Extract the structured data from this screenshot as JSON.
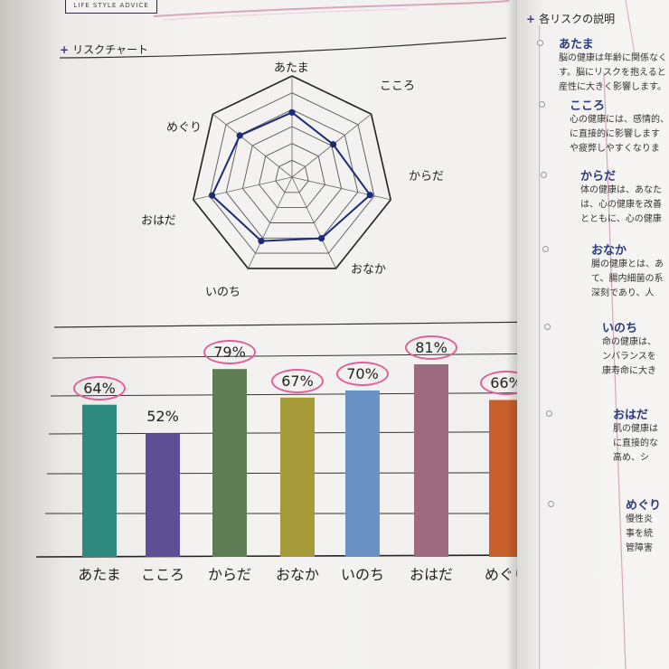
{
  "header": {
    "brand": "LIFE STYLE ADVICE"
  },
  "radar": {
    "title": "リスクチャート",
    "labels": [
      "あたま",
      "こころ",
      "からだ",
      "おなか",
      "いのち",
      "おはだ",
      "めぐり"
    ],
    "values": [
      64,
      52,
      79,
      67,
      70,
      81,
      66
    ]
  },
  "chart_data": {
    "type": "bar",
    "categories": [
      "あたま",
      "こころ",
      "からだ",
      "おなか",
      "いのち",
      "おはだ",
      "めぐり"
    ],
    "values": [
      64,
      52,
      79,
      67,
      70,
      81,
      66
    ],
    "labels": [
      "64%",
      "52%",
      "79%",
      "67%",
      "70%",
      "81%",
      "66%"
    ],
    "circled": [
      true,
      false,
      true,
      true,
      true,
      true,
      true
    ],
    "colors": [
      "#2e8a7e",
      "#5c4f94",
      "#5f7d55",
      "#a79a3a",
      "#6a92c4",
      "#9e6a80",
      "#c95f2a"
    ],
    "ylim": [
      0,
      100
    ]
  },
  "right_page": {
    "title": "各リスクの説明",
    "items": [
      {
        "name": "あたま",
        "lines": [
          "脳の健康は年齢に関係なく",
          "す。脳にリスクを抱えると",
          "産性に大きく影響します。"
        ]
      },
      {
        "name": "こころ",
        "lines": [
          "心の健康には、感情的、",
          "に直接的に影響します",
          "や疲弊しやすくなりま"
        ]
      },
      {
        "name": "からだ",
        "lines": [
          "体の健康は、あなた",
          "は、心の健康を改善",
          "とともに、心の健康"
        ]
      },
      {
        "name": "おなか",
        "lines": [
          "腸の健康とは、あ",
          "て、腸内細菌の系",
          "深刻であり、人"
        ]
      },
      {
        "name": "いのち",
        "lines": [
          "命の健康は、",
          "ンバランスを",
          "康寿命に大き"
        ]
      },
      {
        "name": "おはだ",
        "lines": [
          "肌の健康は",
          "に直接的な",
          "高め、シ"
        ]
      },
      {
        "name": "めぐり",
        "lines": [
          "慢性炎",
          "事を続",
          "管障害"
        ]
      }
    ]
  }
}
